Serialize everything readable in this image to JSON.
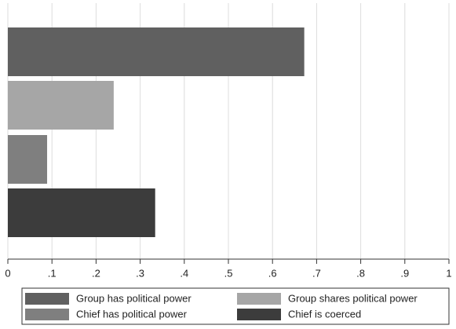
{
  "chart_data": {
    "type": "bar",
    "orientation": "horizontal",
    "grid": true,
    "series": [
      {
        "name": "Group has political power",
        "color": "#606060",
        "values": [
          0.672
        ]
      },
      {
        "name": "Group shares political power",
        "color": "#a6a6a6",
        "values": [
          0.24
        ]
      },
      {
        "name": "Chief has political power",
        "color": "#7f7f7f",
        "values": [
          0.089
        ]
      },
      {
        "name": "Chief is coerced",
        "color": "#3c3c3c",
        "values": [
          0.334
        ]
      }
    ],
    "xlim": [
      0,
      1
    ],
    "xticks": [
      0,
      {
        "value": 0.1,
        "label": ".1"
      },
      {
        "value": 0.2,
        "label": ".2"
      },
      {
        "value": 0.3,
        "label": ".3"
      },
      {
        "value": 0.4,
        "label": ".4"
      },
      {
        "value": 0.5,
        "label": ".5"
      },
      {
        "value": 0.6,
        "label": ".6"
      },
      {
        "value": 0.7,
        "label": ".7"
      },
      {
        "value": 0.8,
        "label": ".8"
      },
      {
        "value": 0.9,
        "label": ".9"
      },
      1
    ],
    "legend": "bottom"
  }
}
